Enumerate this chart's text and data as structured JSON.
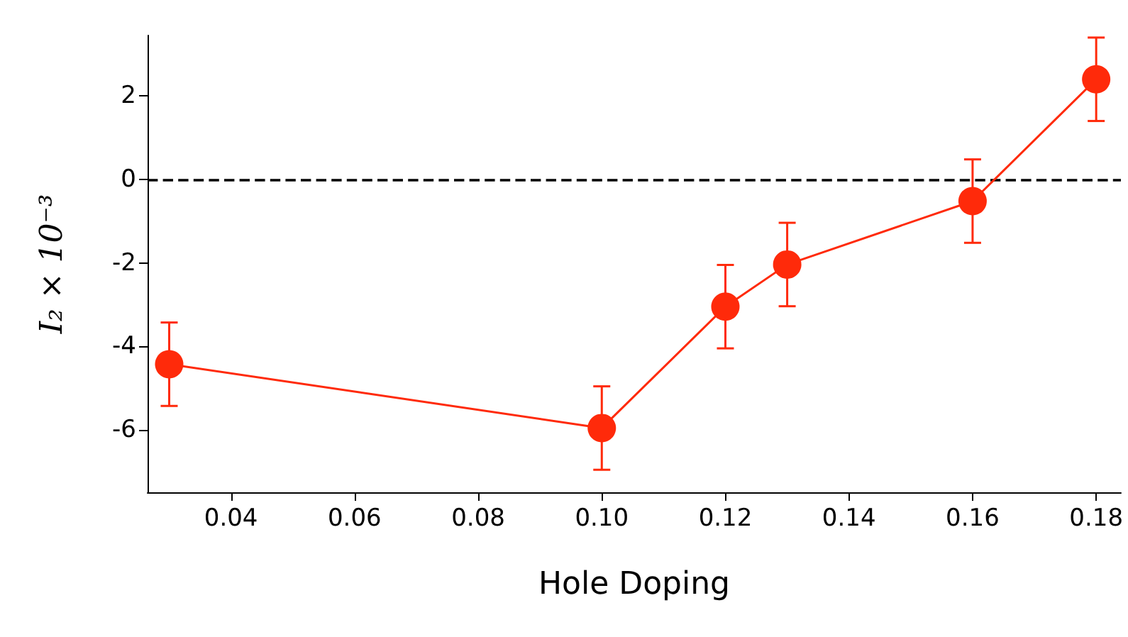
{
  "chart_data": {
    "type": "line",
    "xlabel": "Hole Doping",
    "ylabel": "I₂ × 10⁻³",
    "x": [
      0.03,
      0.1,
      0.12,
      0.13,
      0.16,
      0.18
    ],
    "series": [
      {
        "color": "#ff2a0a",
        "values": [
          -4.43,
          -5.96,
          -3.05,
          -2.04,
          -0.52,
          2.4
        ],
        "errors": [
          1,
          1,
          1,
          1,
          1,
          1
        ]
      }
    ],
    "xlim": [
      0.0265,
      0.184
    ],
    "xticks": [
      {
        "value": 0.04,
        "label": "0.04"
      },
      {
        "value": 0.06,
        "label": "0.06"
      },
      {
        "value": 0.08,
        "label": "0.08"
      },
      {
        "value": 0.1,
        "label": "0.10"
      },
      {
        "value": 0.12,
        "label": "0.12"
      },
      {
        "value": 0.14,
        "label": "0.14"
      },
      {
        "value": 0.16,
        "label": "0.16"
      },
      {
        "value": 0.18,
        "label": "0.18"
      }
    ],
    "ylim": [
      -7.5,
      3.45
    ],
    "yticks": [
      -6,
      -4,
      -2,
      0,
      2
    ],
    "ref_lines": [
      {
        "axis": "y",
        "value": 0,
        "color": "#000000",
        "line_style": "dashed"
      }
    ],
    "grid": false,
    "marker": "circle",
    "line_style": "solid"
  }
}
